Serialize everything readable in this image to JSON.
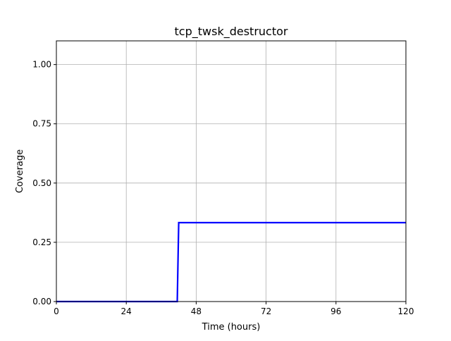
{
  "chart_data": {
    "type": "line",
    "title": "tcp_twsk_destructor",
    "xlabel": "Time (hours)",
    "ylabel": "Coverage",
    "xlim": [
      0,
      120
    ],
    "ylim": [
      0,
      1.1
    ],
    "xticks": [
      0,
      24,
      48,
      72,
      96,
      120
    ],
    "xtick_labels": [
      "0",
      "24",
      "48",
      "72",
      "96",
      "120"
    ],
    "yticks": [
      0,
      0.25,
      0.5,
      0.75,
      1.0
    ],
    "ytick_labels": [
      "0.00",
      "0.25",
      "0.50",
      "0.75",
      "1.00"
    ],
    "grid": true,
    "series": [
      {
        "color": "#0000ff",
        "x": [
          0,
          41.5,
          42,
          120
        ],
        "y": [
          0,
          0,
          0.333,
          0.333
        ]
      }
    ]
  }
}
